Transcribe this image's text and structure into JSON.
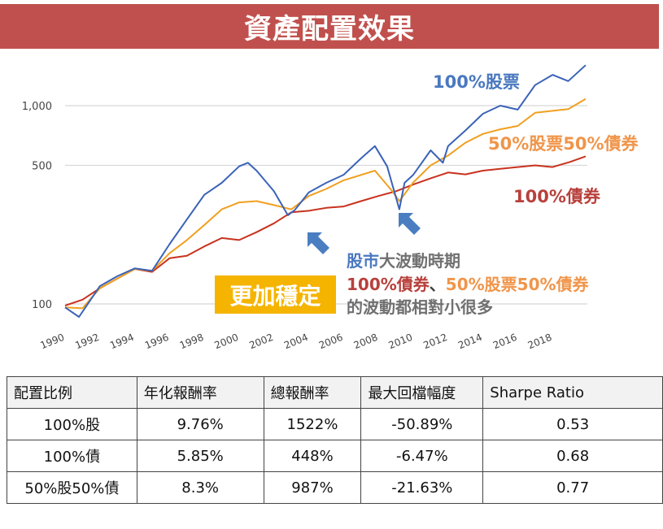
{
  "title": "資產配置效果",
  "chart_data": {
    "type": "line",
    "title": "",
    "xlabel": "",
    "ylabel": "",
    "yscale": "log",
    "ylim": [
      80,
      1800
    ],
    "xlim": [
      1990,
      2020
    ],
    "grid": true,
    "yticks": [
      100,
      500,
      1000
    ],
    "ytick_labels": [
      "100",
      "500",
      "1,000"
    ],
    "xtick_labels": [
      "1990",
      "1992",
      "1994",
      "1996",
      "1998",
      "2000",
      "2002",
      "2004",
      "2006",
      "2008",
      "2010",
      "2012",
      "2014",
      "2016",
      "2018"
    ],
    "series": [
      {
        "name": "100%股票",
        "color": "#3a63b8",
        "x": [
          1990,
          1990.8,
          1992,
          1993,
          1994,
          1995,
          1996,
          1997,
          1998,
          1999,
          2000,
          2000.5,
          2001,
          2002,
          2002.8,
          2003.2,
          2004,
          2005,
          2006,
          2007,
          2007.8,
          2008.5,
          2009.2,
          2009.5,
          2010,
          2011,
          2011.7,
          2012,
          2013,
          2014,
          2015,
          2016,
          2017,
          2018,
          2018.9,
          2019.9
        ],
        "y": [
          96,
          86,
          123,
          138,
          151,
          147,
          200,
          267,
          355,
          408,
          494,
          515,
          470,
          370,
          280,
          298,
          365,
          408,
          448,
          542,
          625,
          494,
          300,
          408,
          448,
          595,
          515,
          625,
          750,
          910,
          1000,
          955,
          1270,
          1430,
          1330,
          1600
        ]
      },
      {
        "name": "50%股票50%債券",
        "color": "#f0a020",
        "x": [
          1990,
          1991,
          1992,
          1994,
          1995,
          1996,
          1997,
          1998,
          1999,
          2000,
          2001,
          2002,
          2003,
          2004,
          2005,
          2006,
          2007.8,
          2008.8,
          2009.2,
          2010,
          2011,
          2012,
          2013,
          2014,
          2015,
          2016,
          2017,
          2018.9,
          2019.9
        ],
        "y": [
          96,
          95,
          120,
          150,
          147,
          180,
          210,
          250,
          300,
          325,
          330,
          315,
          300,
          350,
          380,
          420,
          470,
          370,
          330,
          410,
          500,
          560,
          650,
          720,
          760,
          790,
          920,
          960,
          1080
        ]
      },
      {
        "name": "100%債券",
        "color": "#c8321e",
        "x": [
          1990,
          1991,
          1992,
          1994,
          1995,
          1996,
          1997,
          1998,
          1999,
          2000,
          2001,
          2002,
          2003,
          2004,
          2005,
          2006,
          2007,
          2008,
          2009,
          2010,
          2011,
          2012,
          2013,
          2014,
          2015,
          2016,
          2017,
          2018,
          2019,
          2019.9
        ],
        "y": [
          98,
          105,
          120,
          150,
          145,
          170,
          175,
          195,
          215,
          210,
          230,
          255,
          290,
          295,
          305,
          310,
          330,
          350,
          370,
          400,
          430,
          460,
          450,
          470,
          480,
          490,
          500,
          490,
          520,
          555
        ]
      }
    ],
    "annotations": {
      "stable_badge": "更加穩定",
      "line1_blue": "股市",
      "line1_gray": "大波動時期",
      "line2_red": "100%債券",
      "line2_sep": "、",
      "line2_orange": "50%股票50%債券",
      "line3": "的波動都相對小很多"
    }
  },
  "table": {
    "headers": [
      "配置比例",
      "年化報酬率",
      "總報酬率",
      "最大回檔幅度",
      "Sharpe Ratio"
    ],
    "rows": [
      [
        "100%股",
        "9.76%",
        "1522%",
        "-50.89%",
        "0.53"
      ],
      [
        "100%債",
        "5.85%",
        "448%",
        "-6.47%",
        "0.68"
      ],
      [
        "50%股50%債",
        "8.3%",
        "987%",
        "-21.63%",
        "0.77"
      ]
    ]
  }
}
